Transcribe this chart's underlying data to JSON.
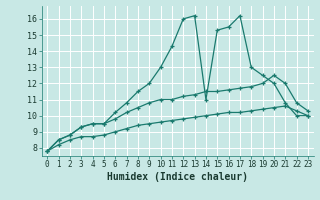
{
  "title": "",
  "xlabel": "Humidex (Indice chaleur)",
  "background_color": "#c8e8e5",
  "line_color": "#1a7a6e",
  "grid_color": "#b0d8d4",
  "xlim": [
    -0.5,
    23.5
  ],
  "ylim": [
    7.5,
    16.8
  ],
  "xticks": [
    0,
    1,
    2,
    3,
    4,
    5,
    6,
    7,
    8,
    9,
    10,
    11,
    12,
    13,
    14,
    15,
    16,
    17,
    18,
    19,
    20,
    21,
    22,
    23
  ],
  "yticks": [
    8,
    9,
    10,
    11,
    12,
    13,
    14,
    15,
    16
  ],
  "series": [
    {
      "x": [
        0,
        1,
        2,
        3,
        4,
        5,
        6,
        7,
        8,
        9,
        10,
        11,
        12,
        13,
        14,
        15,
        16,
        17,
        18,
        19,
        20,
        21,
        22,
        23
      ],
      "y": [
        7.8,
        8.5,
        8.8,
        9.3,
        9.5,
        9.5,
        10.2,
        10.8,
        11.5,
        12.0,
        13.0,
        14.3,
        16.0,
        16.2,
        11.0,
        15.3,
        15.5,
        16.2,
        13.0,
        12.5,
        12.0,
        10.8,
        10.0,
        10.0
      ]
    },
    {
      "x": [
        0,
        1,
        2,
        3,
        4,
        5,
        6,
        7,
        8,
        9,
        10,
        11,
        12,
        13,
        14,
        15,
        16,
        17,
        18,
        19,
        20,
        21,
        22,
        23
      ],
      "y": [
        7.8,
        8.5,
        8.8,
        9.3,
        9.5,
        9.5,
        9.8,
        10.2,
        10.5,
        10.8,
        11.0,
        11.0,
        11.2,
        11.3,
        11.5,
        11.5,
        11.6,
        11.7,
        11.8,
        12.0,
        12.5,
        12.0,
        10.8,
        10.3
      ]
    },
    {
      "x": [
        0,
        1,
        2,
        3,
        4,
        5,
        6,
        7,
        8,
        9,
        10,
        11,
        12,
        13,
        14,
        15,
        16,
        17,
        18,
        19,
        20,
        21,
        22,
        23
      ],
      "y": [
        7.8,
        8.2,
        8.5,
        8.7,
        8.7,
        8.8,
        9.0,
        9.2,
        9.4,
        9.5,
        9.6,
        9.7,
        9.8,
        9.9,
        10.0,
        10.1,
        10.2,
        10.2,
        10.3,
        10.4,
        10.5,
        10.6,
        10.3,
        10.0
      ]
    }
  ]
}
